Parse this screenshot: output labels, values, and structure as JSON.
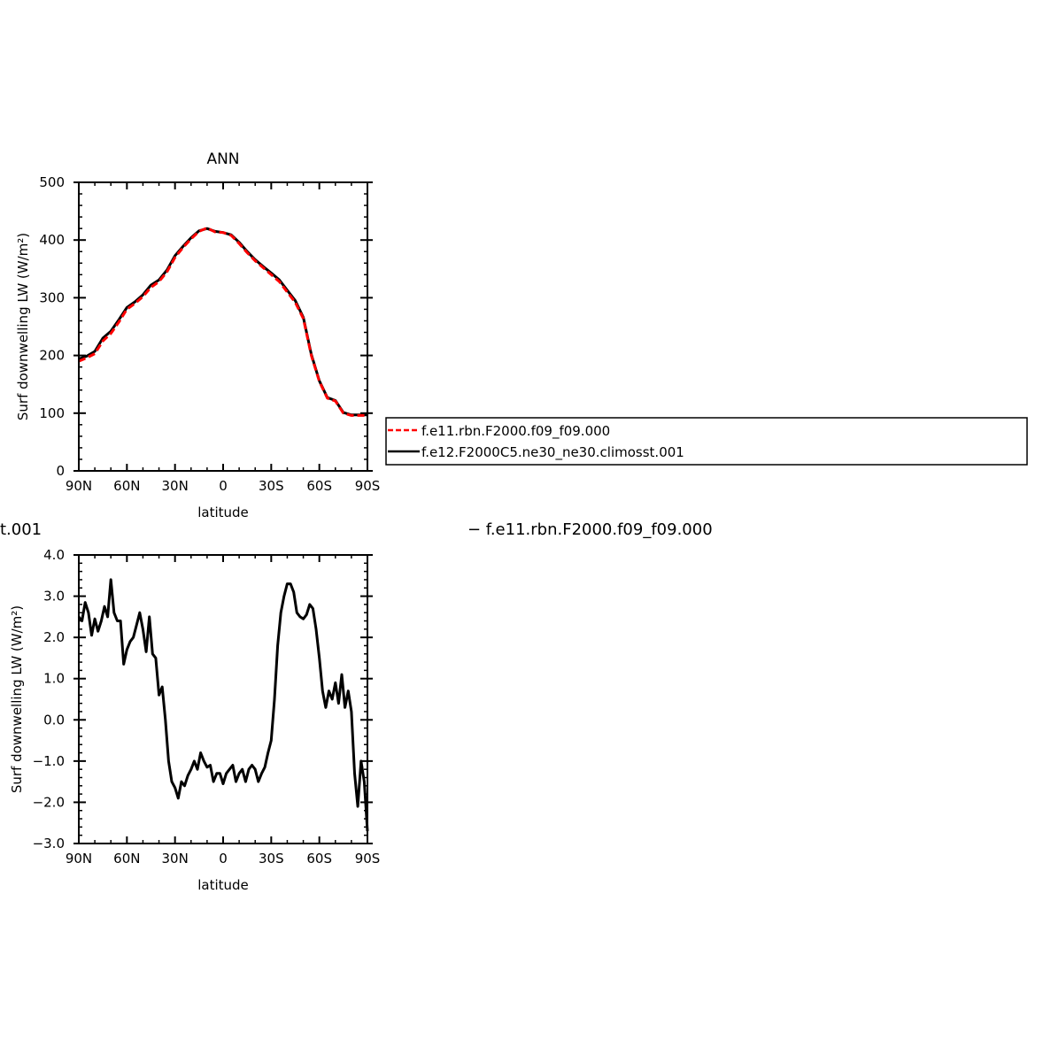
{
  "chart_data": [
    {
      "type": "line",
      "title": "ANN",
      "xlabel": "latitude",
      "ylabel": "Surf downwelling LW (W/m²)",
      "xlim": [
        90,
        -90
      ],
      "ylim": [
        0,
        500
      ],
      "x_ticks": [
        90,
        60,
        30,
        0,
        -30,
        -60,
        -90
      ],
      "x_tick_labels": [
        "90N",
        "60N",
        "30N",
        "0",
        "30S",
        "60S",
        "90S"
      ],
      "y_ticks": [
        0,
        100,
        200,
        300,
        400,
        500
      ],
      "y_tick_labels": [
        "0",
        "100",
        "200",
        "300",
        "400",
        "500"
      ],
      "grid": false,
      "legend_position": "right",
      "x": [
        90,
        85,
        80,
        75,
        70,
        65,
        60,
        55,
        50,
        45,
        40,
        35,
        30,
        25,
        20,
        15,
        10,
        5,
        0,
        -5,
        -10,
        -15,
        -20,
        -25,
        -30,
        -35,
        -40,
        -45,
        -50,
        -55,
        -60,
        -65,
        -70,
        -75,
        -80,
        -85,
        -90
      ],
      "series": [
        {
          "name": "f.e11.rbn.F2000.f09_f09.000",
          "color": "#ff0000",
          "dash": "dashed",
          "values": [
            190,
            196,
            203,
            225,
            238,
            258,
            280,
            290,
            302,
            318,
            328,
            345,
            370,
            387,
            402,
            415,
            421,
            414,
            413,
            408,
            394,
            378,
            364,
            352,
            340,
            328,
            310,
            292,
            264,
            200,
            155,
            126,
            121,
            100,
            96,
            96,
            96
          ]
        },
        {
          "name": "f.e12.F2000C5.ne30_ne30.climosst.001",
          "color": "#000000",
          "dash": "solid",
          "values": [
            194,
            199,
            207,
            230,
            242,
            262,
            283,
            293,
            305,
            322,
            331,
            348,
            373,
            389,
            404,
            416,
            420,
            415,
            413,
            409,
            396,
            380,
            366,
            354,
            343,
            331,
            313,
            295,
            266,
            202,
            156,
            127,
            122,
            101,
            97,
            97,
            97
          ]
        }
      ]
    },
    {
      "type": "line",
      "title": "",
      "xlabel": "latitude",
      "ylabel": "Surf downwelling LW (W/m²)",
      "xlim": [
        90,
        -90
      ],
      "ylim": [
        -3.0,
        4.0
      ],
      "x_ticks": [
        90,
        60,
        30,
        0,
        -30,
        -60,
        -90
      ],
      "x_tick_labels": [
        "90N",
        "60N",
        "30N",
        "0",
        "30S",
        "60S",
        "90S"
      ],
      "y_ticks": [
        4.0,
        3.0,
        2.0,
        1.0,
        0.0,
        -1.0,
        -2.0,
        -3.0
      ],
      "y_tick_labels": [
        "4.0",
        "3.0",
        "2.0",
        "1.0",
        "0.0",
        "−1.0",
        "−2.0",
        "−3.0"
      ],
      "grid": false,
      "header_text_left": "t.001",
      "header_text_right": "− f.e11.rbn.F2000.f09_f09.000",
      "x": [
        90,
        88,
        86,
        84,
        82,
        80,
        78,
        76,
        74,
        72,
        70,
        68,
        66,
        64,
        62,
        60,
        58,
        56,
        54,
        52,
        50,
        48,
        46,
        44,
        42,
        40,
        38,
        36,
        34,
        32,
        30,
        28,
        26,
        24,
        22,
        20,
        18,
        16,
        14,
        12,
        10,
        8,
        6,
        4,
        2,
        0,
        -2,
        -4,
        -6,
        -8,
        -10,
        -12,
        -14,
        -16,
        -18,
        -20,
        -22,
        -24,
        -26,
        -28,
        -30,
        -32,
        -34,
        -36,
        -38,
        -40,
        -42,
        -44,
        -46,
        -48,
        -50,
        -52,
        -54,
        -56,
        -58,
        -60,
        -62,
        -64,
        -66,
        -68,
        -70,
        -72,
        -74,
        -76,
        -78,
        -80,
        -82,
        -84,
        -86,
        -88,
        -90
      ],
      "series": [
        {
          "name": "",
          "color": "#000000",
          "values": [
            2.5,
            2.4,
            2.85,
            2.6,
            2.05,
            2.45,
            2.15,
            2.4,
            2.75,
            2.5,
            3.4,
            2.6,
            2.4,
            2.4,
            1.35,
            1.7,
            1.9,
            2.0,
            2.3,
            2.6,
            2.2,
            1.65,
            2.5,
            1.6,
            1.5,
            0.6,
            0.8,
            0.0,
            -1.0,
            -1.5,
            -1.65,
            -1.9,
            -1.5,
            -1.6,
            -1.35,
            -1.2,
            -1.0,
            -1.2,
            -0.8,
            -1.0,
            -1.15,
            -1.1,
            -1.5,
            -1.3,
            -1.3,
            -1.55,
            -1.3,
            -1.2,
            -1.1,
            -1.5,
            -1.3,
            -1.2,
            -1.5,
            -1.2,
            -1.1,
            -1.2,
            -1.5,
            -1.3,
            -1.15,
            -0.8,
            -0.5,
            0.5,
            1.8,
            2.6,
            3.0,
            3.3,
            3.3,
            3.1,
            2.6,
            2.5,
            2.45,
            2.55,
            2.8,
            2.7,
            2.2,
            1.5,
            0.7,
            0.3,
            0.7,
            0.5,
            0.9,
            0.4,
            1.1,
            0.3,
            0.7,
            0.2,
            -1.3,
            -2.1,
            -1.0,
            -1.5,
            -2.7
          ]
        }
      ]
    }
  ]
}
